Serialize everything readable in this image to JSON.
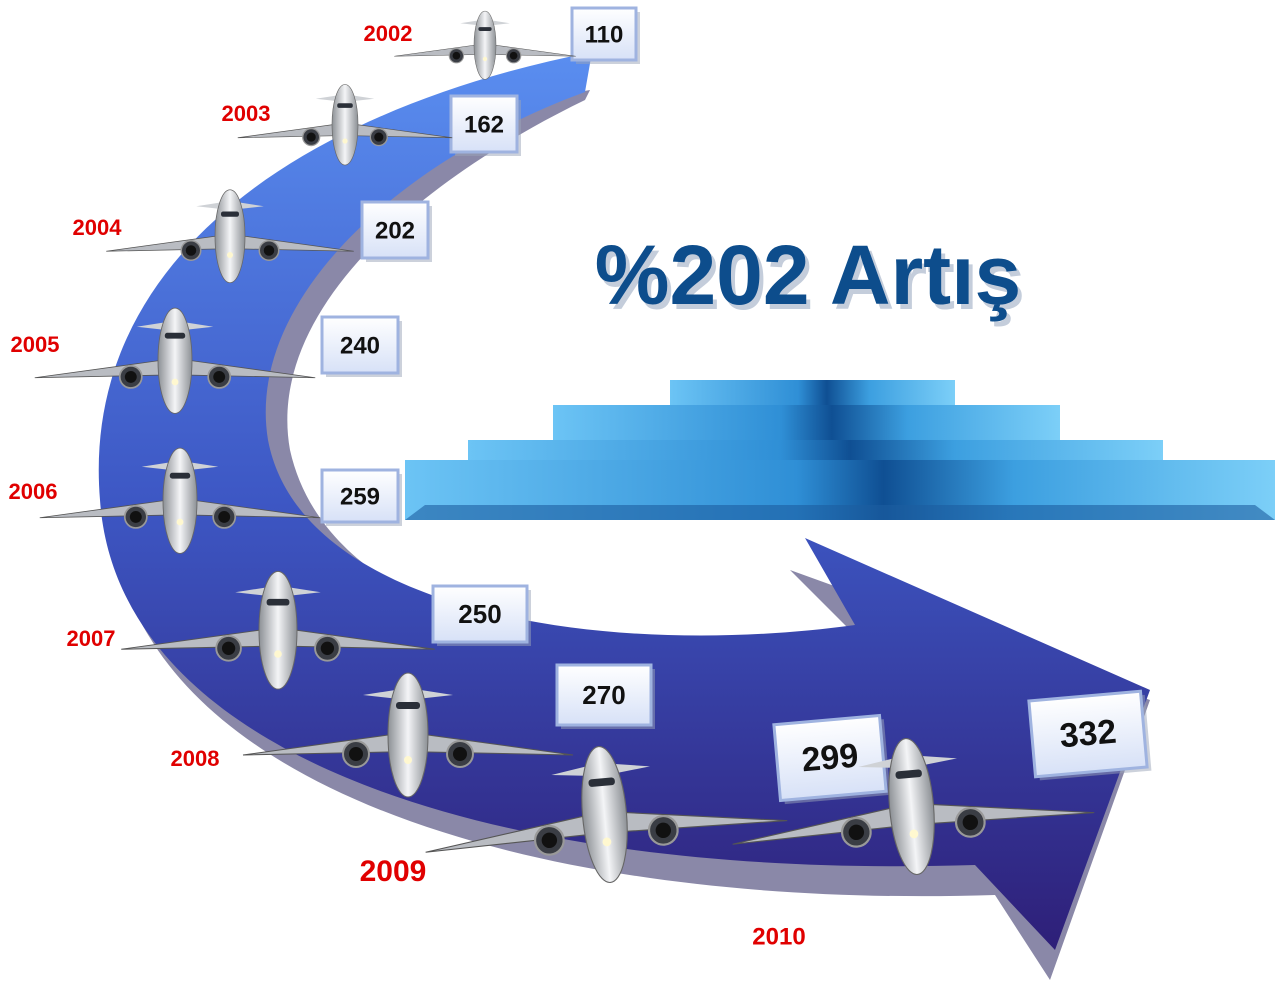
{
  "title": "%202 Artış",
  "items": [
    {
      "year": "2002",
      "value": 110
    },
    {
      "year": "2003",
      "value": 162
    },
    {
      "year": "2004",
      "value": 202
    },
    {
      "year": "2005",
      "value": 240
    },
    {
      "year": "2006",
      "value": 259
    },
    {
      "year": "2007",
      "value": 250
    },
    {
      "year": "2008",
      "value": 270
    },
    {
      "year": "2009",
      "value": 299
    },
    {
      "year": "2010",
      "value": 332
    }
  ]
}
